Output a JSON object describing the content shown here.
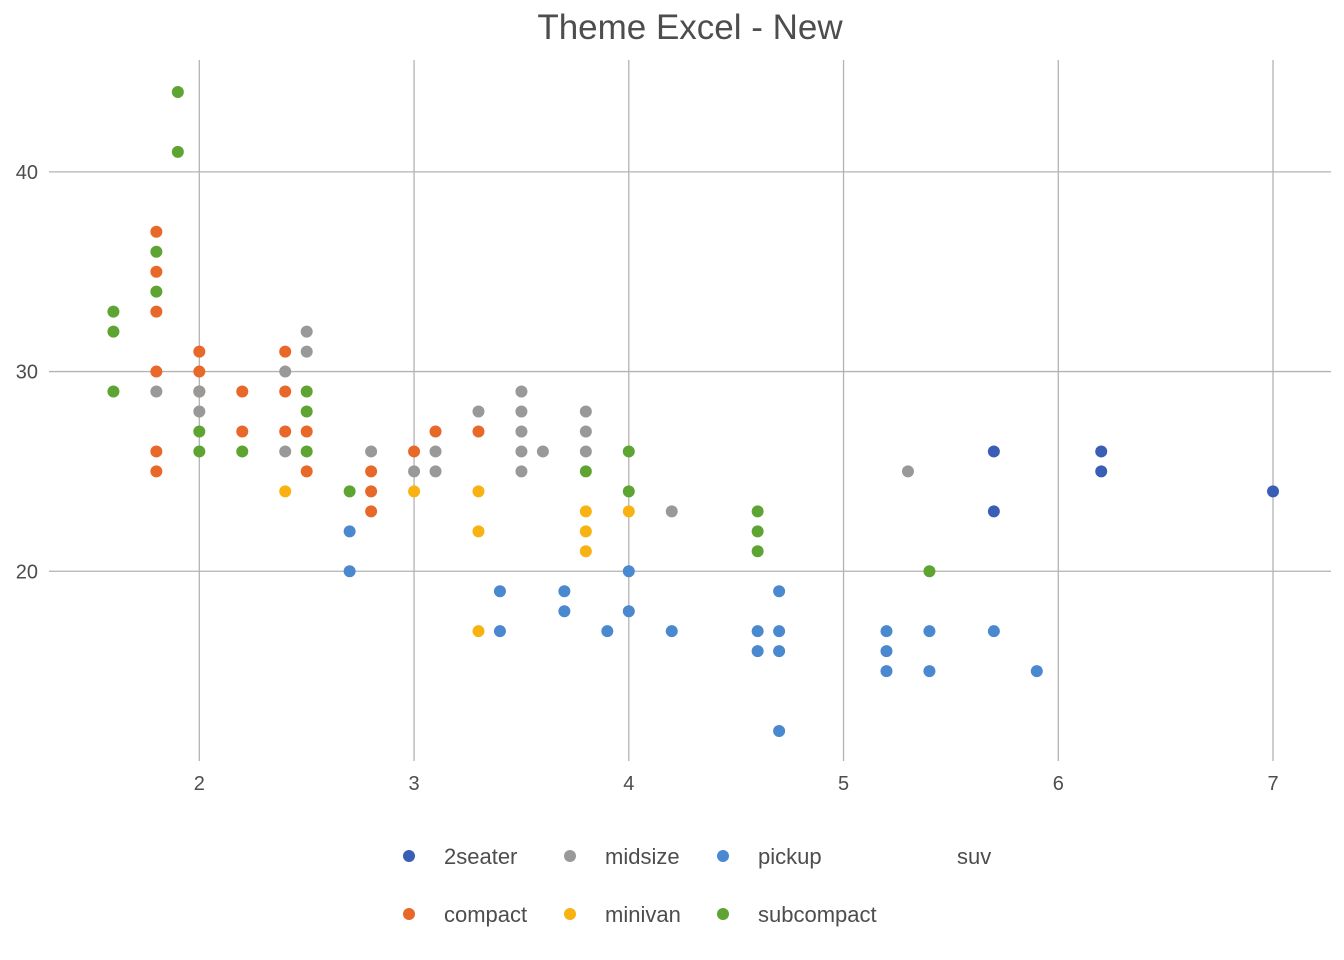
{
  "chart_data": {
    "type": "scatter",
    "title": "Theme Excel - New",
    "xlabel": "",
    "ylabel": "",
    "xlim": [
      1.3,
      7.27
    ],
    "ylim": [
      10.5,
      45.6
    ],
    "x_ticks": [
      2,
      3,
      4,
      5,
      6,
      7
    ],
    "y_ticks": [
      20,
      30,
      40
    ],
    "grid": true,
    "legend_position": "bottom",
    "series": [
      {
        "name": "2seater",
        "color": "#3a5eb5",
        "points": [
          [
            5.7,
            26
          ],
          [
            5.7,
            23
          ],
          [
            6.2,
            26
          ],
          [
            6.2,
            25
          ],
          [
            7.0,
            24
          ]
        ]
      },
      {
        "name": "compact",
        "color": "#e8682a",
        "points": [
          [
            1.8,
            37
          ],
          [
            1.8,
            35
          ],
          [
            1.8,
            33
          ],
          [
            1.8,
            30
          ],
          [
            1.8,
            26
          ],
          [
            1.8,
            25
          ],
          [
            2.0,
            31
          ],
          [
            2.0,
            30
          ],
          [
            2.0,
            29
          ],
          [
            2.2,
            29
          ],
          [
            2.2,
            27
          ],
          [
            2.4,
            31
          ],
          [
            2.4,
            29
          ],
          [
            2.4,
            27
          ],
          [
            2.5,
            27
          ],
          [
            2.5,
            25
          ],
          [
            2.8,
            25
          ],
          [
            2.8,
            24
          ],
          [
            2.8,
            23
          ],
          [
            3.0,
            26
          ],
          [
            3.1,
            27
          ],
          [
            3.3,
            27
          ]
        ]
      },
      {
        "name": "midsize",
        "color": "#999999",
        "points": [
          [
            1.8,
            29
          ],
          [
            2.0,
            29
          ],
          [
            2.0,
            28
          ],
          [
            2.4,
            30
          ],
          [
            2.4,
            26
          ],
          [
            2.5,
            32
          ],
          [
            2.5,
            31
          ],
          [
            2.8,
            26
          ],
          [
            3.0,
            25
          ],
          [
            3.1,
            26
          ],
          [
            3.1,
            25
          ],
          [
            3.3,
            28
          ],
          [
            3.5,
            29
          ],
          [
            3.5,
            28
          ],
          [
            3.5,
            27
          ],
          [
            3.5,
            26
          ],
          [
            3.5,
            25
          ],
          [
            3.6,
            26
          ],
          [
            3.8,
            28
          ],
          [
            3.8,
            27
          ],
          [
            3.8,
            26
          ],
          [
            4.2,
            23
          ],
          [
            5.3,
            25
          ]
        ]
      },
      {
        "name": "minivan",
        "color": "#f8b212",
        "points": [
          [
            2.4,
            24
          ],
          [
            3.0,
            24
          ],
          [
            3.3,
            24
          ],
          [
            3.3,
            22
          ],
          [
            3.3,
            17
          ],
          [
            3.8,
            23
          ],
          [
            3.8,
            22
          ],
          [
            3.8,
            21
          ],
          [
            4.0,
            23
          ]
        ]
      },
      {
        "name": "pickup",
        "color": "#4a88cf",
        "points": [
          [
            2.7,
            22
          ],
          [
            2.7,
            20
          ],
          [
            3.4,
            19
          ],
          [
            3.4,
            17
          ],
          [
            3.7,
            19
          ],
          [
            3.7,
            18
          ],
          [
            3.9,
            17
          ],
          [
            4.0,
            20
          ],
          [
            4.0,
            18
          ],
          [
            4.2,
            17
          ],
          [
            4.6,
            17
          ],
          [
            4.6,
            16
          ],
          [
            4.7,
            19
          ],
          [
            4.7,
            17
          ],
          [
            4.7,
            16
          ],
          [
            4.7,
            12
          ],
          [
            5.2,
            17
          ],
          [
            5.2,
            16
          ],
          [
            5.2,
            15
          ],
          [
            5.4,
            17
          ],
          [
            5.4,
            15
          ],
          [
            5.7,
            17
          ],
          [
            5.9,
            15
          ]
        ]
      },
      {
        "name": "subcompact",
        "color": "#5ea432",
        "points": [
          [
            1.6,
            33
          ],
          [
            1.6,
            32
          ],
          [
            1.6,
            29
          ],
          [
            1.8,
            36
          ],
          [
            1.8,
            34
          ],
          [
            1.9,
            44
          ],
          [
            1.9,
            41
          ],
          [
            2.0,
            27
          ],
          [
            2.0,
            26
          ],
          [
            2.2,
            26
          ],
          [
            2.5,
            29
          ],
          [
            2.5,
            28
          ],
          [
            2.5,
            26
          ],
          [
            2.7,
            24
          ],
          [
            3.8,
            25
          ],
          [
            4.0,
            26
          ],
          [
            4.0,
            24
          ],
          [
            4.6,
            23
          ],
          [
            4.6,
            22
          ],
          [
            4.6,
            21
          ],
          [
            5.4,
            20
          ]
        ]
      },
      {
        "name": "suv",
        "color": "#ffffff",
        "points": []
      }
    ],
    "legend_rows": [
      [
        "2seater",
        "midsize",
        "pickup",
        "suv"
      ],
      [
        "compact",
        "minivan",
        "subcompact"
      ]
    ]
  }
}
